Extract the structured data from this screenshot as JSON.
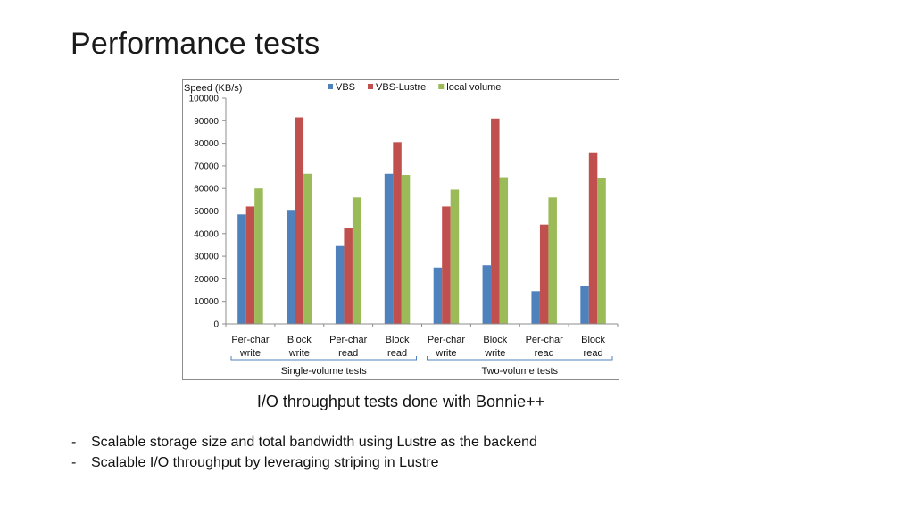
{
  "slide": {
    "title": "Performance tests",
    "caption": "I/O throughput tests done with Bonnie++",
    "bullets": [
      "Scalable storage size and total bandwidth using Lustre as the backend",
      "Scalable I/O throughput by leveraging striping in Lustre"
    ],
    "bullet_marker": "-"
  },
  "chart_data": {
    "type": "bar",
    "ylabel": "Speed (KB/s)",
    "ylim": [
      0,
      100000
    ],
    "yticks": [
      0,
      10000,
      20000,
      30000,
      40000,
      50000,
      60000,
      70000,
      80000,
      90000,
      100000
    ],
    "grid": false,
    "legend_position": "top",
    "categories": [
      [
        "Per-char",
        "write"
      ],
      [
        "Block",
        "write"
      ],
      [
        "Per-char",
        "read"
      ],
      [
        "Block",
        "read"
      ],
      [
        "Per-char",
        "write"
      ],
      [
        "Block",
        "write"
      ],
      [
        "Per-char",
        "read"
      ],
      [
        "Block",
        "read"
      ]
    ],
    "groups": [
      {
        "label": "Single-volume tests",
        "start": 0,
        "end": 3
      },
      {
        "label": "Two-volume tests",
        "start": 4,
        "end": 7
      }
    ],
    "series": [
      {
        "name": "VBS",
        "color": "#4f81bd",
        "values": [
          48500,
          50500,
          34500,
          66500,
          25000,
          26000,
          14500,
          17000
        ]
      },
      {
        "name": "VBS-Lustre",
        "color": "#c0504d",
        "values": [
          52000,
          91500,
          42500,
          80500,
          52000,
          91000,
          44000,
          76000
        ]
      },
      {
        "name": "local volume",
        "color": "#9bbb59",
        "values": [
          60000,
          66500,
          56000,
          66000,
          59500,
          65000,
          56000,
          64500
        ]
      }
    ]
  }
}
